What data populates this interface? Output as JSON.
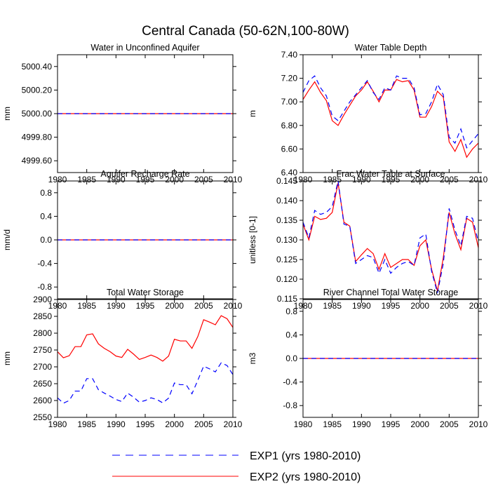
{
  "figure": {
    "title": "Central Canada (50-62N,100-80W)"
  },
  "legend": [
    {
      "label": "EXP1 (yrs 1980-2010)",
      "color": "#0000ff",
      "dash": "dashed"
    },
    {
      "label": "EXP2 (yrs 1980-2010)",
      "color": "#ff0000",
      "dash": "solid"
    }
  ],
  "chart_data": [
    {
      "type": "line",
      "title": "Water in Unconfined Aquifer",
      "ylabel": "mm",
      "xlim": [
        1980,
        2010
      ],
      "ylim": [
        4999.5,
        5000.5
      ],
      "xticks": [
        1980,
        1985,
        1990,
        1995,
        2000,
        2005,
        2010
      ],
      "yticks": [
        4999.6,
        4999.8,
        5000.0,
        5000.2,
        5000.4
      ],
      "ytick_labels": [
        "4999.60",
        "4999.80",
        "5000.00",
        "5000.20",
        "5000.40"
      ],
      "x": [
        1980,
        2010
      ],
      "series": [
        {
          "name": "EXP2 (yrs 1980-2010)",
          "values": [
            5000.0,
            5000.0
          ]
        },
        {
          "name": "EXP1 (yrs 1980-2010)",
          "values": [
            5000.0,
            5000.0
          ]
        }
      ]
    },
    {
      "type": "line",
      "title": "Water Table Depth",
      "ylabel": "m",
      "xlim": [
        1980,
        2010
      ],
      "ylim": [
        6.4,
        7.4
      ],
      "xticks": [
        1980,
        1985,
        1990,
        1995,
        2000,
        2005,
        2010
      ],
      "yticks": [
        6.4,
        6.6,
        6.8,
        7.0,
        7.2,
        7.4
      ],
      "ytick_labels": [
        "6.40",
        "6.60",
        "6.80",
        "7.00",
        "7.20",
        "7.40"
      ],
      "x": [
        1980,
        1981,
        1982,
        1983,
        1984,
        1985,
        1986,
        1987,
        1988,
        1989,
        1990,
        1991,
        1992,
        1993,
        1994,
        1995,
        1996,
        1997,
        1998,
        1999,
        2000,
        2001,
        2002,
        2003,
        2004,
        2005,
        2006,
        2007,
        2008,
        2009,
        2010
      ],
      "series": [
        {
          "name": "EXP2 (yrs 1980-2010)",
          "values": [
            7.02,
            7.1,
            7.17,
            7.08,
            7.01,
            6.84,
            6.8,
            6.89,
            6.97,
            7.05,
            7.1,
            7.17,
            7.09,
            7.0,
            7.1,
            7.1,
            7.19,
            7.17,
            7.18,
            7.1,
            6.87,
            6.87,
            6.96,
            7.09,
            7.04,
            6.66,
            6.58,
            6.68,
            6.53,
            6.6,
            6.65
          ]
        },
        {
          "name": "EXP1 (yrs 1980-2010)",
          "values": [
            7.08,
            7.18,
            7.22,
            7.12,
            7.05,
            6.88,
            6.84,
            6.92,
            7.0,
            7.06,
            7.12,
            7.18,
            7.08,
            7.02,
            7.12,
            7.1,
            7.22,
            7.2,
            7.2,
            7.12,
            6.89,
            6.9,
            7.0,
            7.15,
            7.06,
            6.7,
            6.65,
            6.77,
            6.61,
            6.67,
            6.73
          ]
        }
      ]
    },
    {
      "type": "line",
      "title": "Aquifer Recharge Rate",
      "ylabel": "mm/d",
      "xlim": [
        1980,
        2010
      ],
      "ylim": [
        -1.0,
        1.0
      ],
      "xticks": [
        1980,
        1985,
        1990,
        1995,
        2000,
        2005,
        2010
      ],
      "yticks": [
        -0.8,
        -0.4,
        0.0,
        0.4,
        0.8
      ],
      "ytick_labels": [
        "-0.8",
        "-0.4",
        "0.0",
        "0.4",
        "0.8"
      ],
      "x": [
        1980,
        2010
      ],
      "series": [
        {
          "name": "EXP2 (yrs 1980-2010)",
          "values": [
            0.0,
            0.0
          ]
        },
        {
          "name": "EXP1 (yrs 1980-2010)",
          "values": [
            0.0,
            0.0
          ]
        }
      ]
    },
    {
      "type": "line",
      "title": "Frac Water Table at Surface",
      "ylabel": "unitless [0-1]",
      "xlim": [
        1980,
        2010
      ],
      "ylim": [
        0.115,
        0.145
      ],
      "xticks": [
        1980,
        1985,
        1990,
        1995,
        2000,
        2005,
        2010
      ],
      "yticks": [
        0.115,
        0.12,
        0.125,
        0.13,
        0.135,
        0.14,
        0.145
      ],
      "ytick_labels": [
        "0.115",
        "0.120",
        "0.125",
        "0.130",
        "0.135",
        "0.140",
        "0.145"
      ],
      "x": [
        1980,
        1981,
        1982,
        1983,
        1984,
        1985,
        1986,
        1987,
        1988,
        1989,
        1990,
        1991,
        1992,
        1993,
        1994,
        1995,
        1996,
        1997,
        1998,
        1999,
        2000,
        2001,
        2002,
        2003,
        2004,
        2005,
        2006,
        2007,
        2008,
        2009,
        2010
      ],
      "series": [
        {
          "name": "EXP2 (yrs 1980-2010)",
          "values": [
            0.134,
            0.13,
            0.136,
            0.1352,
            0.1355,
            0.137,
            0.1445,
            0.1345,
            0.1335,
            0.1245,
            0.1262,
            0.1278,
            0.1265,
            0.1225,
            0.1265,
            0.123,
            0.124,
            0.125,
            0.125,
            0.1235,
            0.1285,
            0.13,
            0.1225,
            0.117,
            0.1255,
            0.137,
            0.1315,
            0.1275,
            0.1355,
            0.1345,
            0.128
          ]
        },
        {
          "name": "EXP1 (yrs 1980-2010)",
          "values": [
            0.1345,
            0.1305,
            0.1375,
            0.1365,
            0.137,
            0.1385,
            0.145,
            0.134,
            0.1335,
            0.124,
            0.125,
            0.126,
            0.1255,
            0.1215,
            0.125,
            0.1215,
            0.123,
            0.124,
            0.1245,
            0.1235,
            0.1305,
            0.1315,
            0.122,
            0.1165,
            0.124,
            0.138,
            0.1325,
            0.1285,
            0.136,
            0.1355,
            0.1295
          ]
        }
      ]
    },
    {
      "type": "line",
      "title": "Total Water Storage",
      "ylabel": "mm",
      "xlim": [
        1980,
        2010
      ],
      "ylim": [
        2550,
        2900
      ],
      "xticks": [
        1980,
        1985,
        1990,
        1995,
        2000,
        2005,
        2010
      ],
      "yticks": [
        2550,
        2600,
        2650,
        2700,
        2750,
        2800,
        2850,
        2900
      ],
      "ytick_labels": [
        "2550",
        "2600",
        "2650",
        "2700",
        "2750",
        "2800",
        "2850",
        "2900"
      ],
      "x": [
        1980,
        1981,
        1982,
        1983,
        1984,
        1985,
        1986,
        1987,
        1988,
        1989,
        1990,
        1991,
        1992,
        1993,
        1994,
        1995,
        1996,
        1997,
        1998,
        1999,
        2000,
        2001,
        2002,
        2003,
        2004,
        2005,
        2006,
        2007,
        2008,
        2009,
        2010
      ],
      "series": [
        {
          "name": "EXP2 (yrs 1980-2010)",
          "values": [
            2745,
            2727,
            2733,
            2760,
            2760,
            2795,
            2798,
            2768,
            2755,
            2745,
            2732,
            2728,
            2752,
            2738,
            2722,
            2728,
            2735,
            2728,
            2717,
            2732,
            2782,
            2777,
            2777,
            2755,
            2790,
            2840,
            2833,
            2825,
            2852,
            2843,
            2817
          ]
        },
        {
          "name": "EXP1 (yrs 1980-2010)",
          "values": [
            2608,
            2592,
            2600,
            2628,
            2628,
            2665,
            2665,
            2632,
            2622,
            2613,
            2603,
            2597,
            2622,
            2610,
            2595,
            2600,
            2608,
            2603,
            2593,
            2607,
            2652,
            2647,
            2647,
            2620,
            2660,
            2702,
            2694,
            2685,
            2712,
            2704,
            2677
          ]
        }
      ]
    },
    {
      "type": "line",
      "title": "River Channel Total Water Storage",
      "ylabel": "m3",
      "xlim": [
        1980,
        2010
      ],
      "ylim": [
        -1.0,
        1.0
      ],
      "xticks": [
        1980,
        1985,
        1990,
        1995,
        2000,
        2005,
        2010
      ],
      "yticks": [
        -0.8,
        -0.4,
        0.0,
        0.4,
        0.8
      ],
      "ytick_labels": [
        "-0.8",
        "-0.4",
        "0.0",
        "0.4",
        "0.8"
      ],
      "x": [
        1980,
        2010
      ],
      "series": [
        {
          "name": "EXP2 (yrs 1980-2010)",
          "values": [
            0.0,
            0.0
          ]
        },
        {
          "name": "EXP1 (yrs 1980-2010)",
          "values": [
            0.0,
            0.0
          ]
        }
      ]
    }
  ]
}
